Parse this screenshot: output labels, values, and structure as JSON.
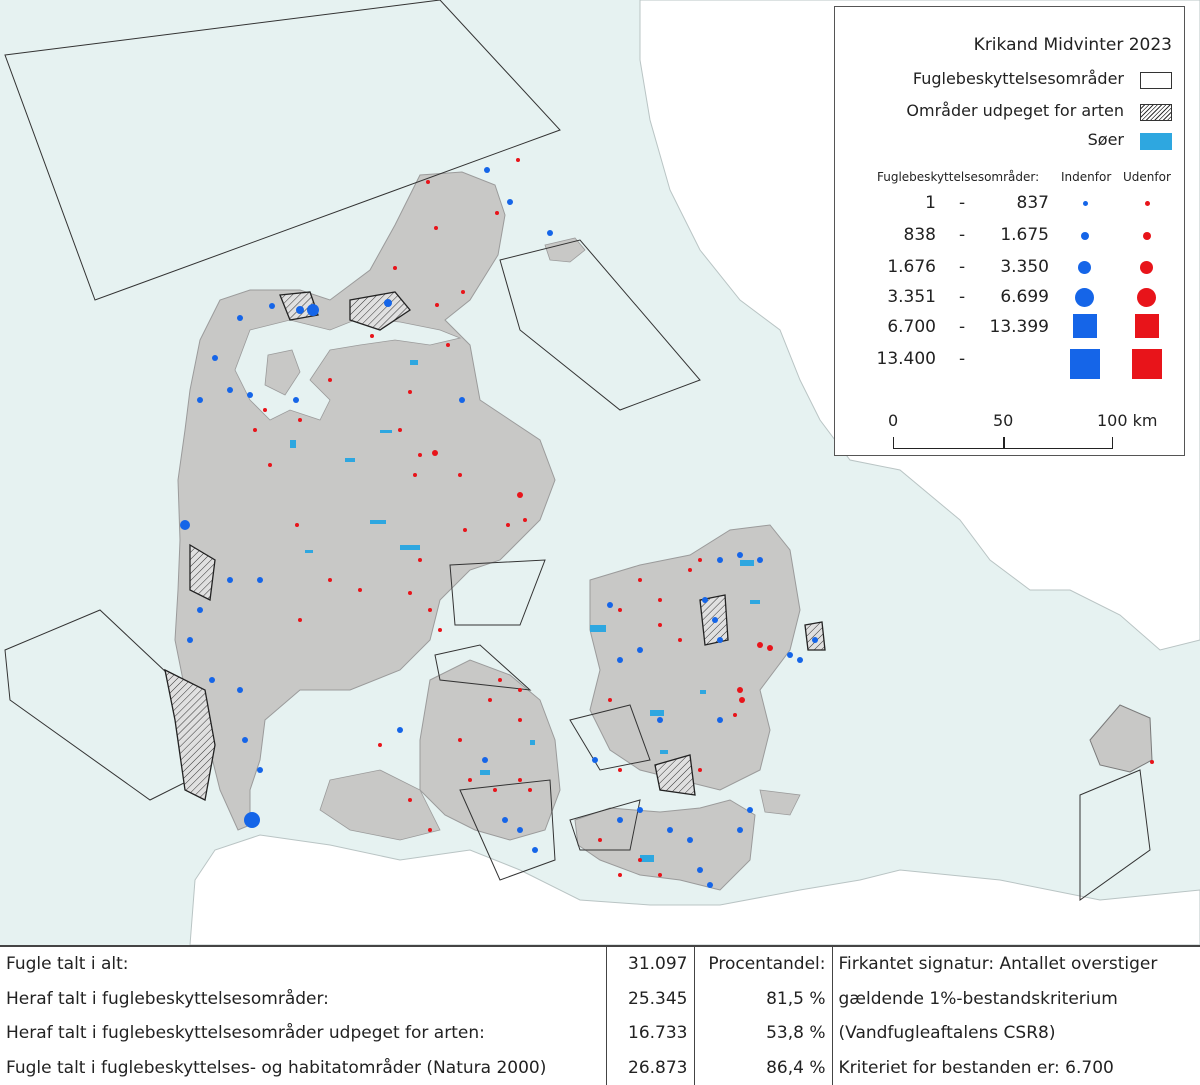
{
  "legend": {
    "title": "Krikand Midvinter 2023",
    "items": [
      {
        "label": "Fuglebeskyttelsesområder",
        "swatch": "white"
      },
      {
        "label": "Områder udpeget for arten",
        "swatch": "hatched"
      },
      {
        "label": "Søer",
        "swatch": "#2ea7e0"
      }
    ],
    "header_label": "Fuglebeskyttelsesområder:",
    "header_inside": "Indenfor",
    "header_outside": "Udenfor",
    "classes": [
      {
        "low": "1",
        "high": "837",
        "shape": "circle"
      },
      {
        "low": "838",
        "high": "1.675",
        "shape": "circle"
      },
      {
        "low": "1.676",
        "high": "3.350",
        "shape": "circle"
      },
      {
        "low": "3.351",
        "high": "6.699",
        "shape": "circle"
      },
      {
        "low": "6.700",
        "high": "13.399",
        "shape": "square"
      },
      {
        "low": "13.400",
        "high": "",
        "shape": "square"
      }
    ],
    "dash": "-",
    "colors": {
      "inside": "#1565e8",
      "outside": "#e8141a",
      "land": "#c8c8c6",
      "sea": "#e6f2f1",
      "lakes": "#2ea7e0"
    },
    "scale": {
      "labels": [
        "0",
        "50",
        "100 km"
      ]
    }
  },
  "stats": {
    "rows": [
      {
        "label": "Fugle talt i alt:",
        "value": "31.097",
        "pct": "Procentandel:",
        "note": "Firkantet signatur: Antallet overstiger"
      },
      {
        "label": "Heraf talt i fuglebeskyttelsesområder:",
        "value": "25.345",
        "pct": "81,5 %",
        "note": "gældende 1%-bestandskriterium"
      },
      {
        "label": "Heraf talt i fuglebeskyttelsesområder udpeget for arten:",
        "value": "16.733",
        "pct": "53,8 %",
        "note": "(Vandfugleaftalens CSR8)"
      },
      {
        "label": "Fugle talt i fuglebeskyttelses- og habitatområder (Natura 2000)",
        "value": "26.873",
        "pct": "86,4 %",
        "note": "Kriteriet for bestanden er: 6.700"
      }
    ]
  }
}
